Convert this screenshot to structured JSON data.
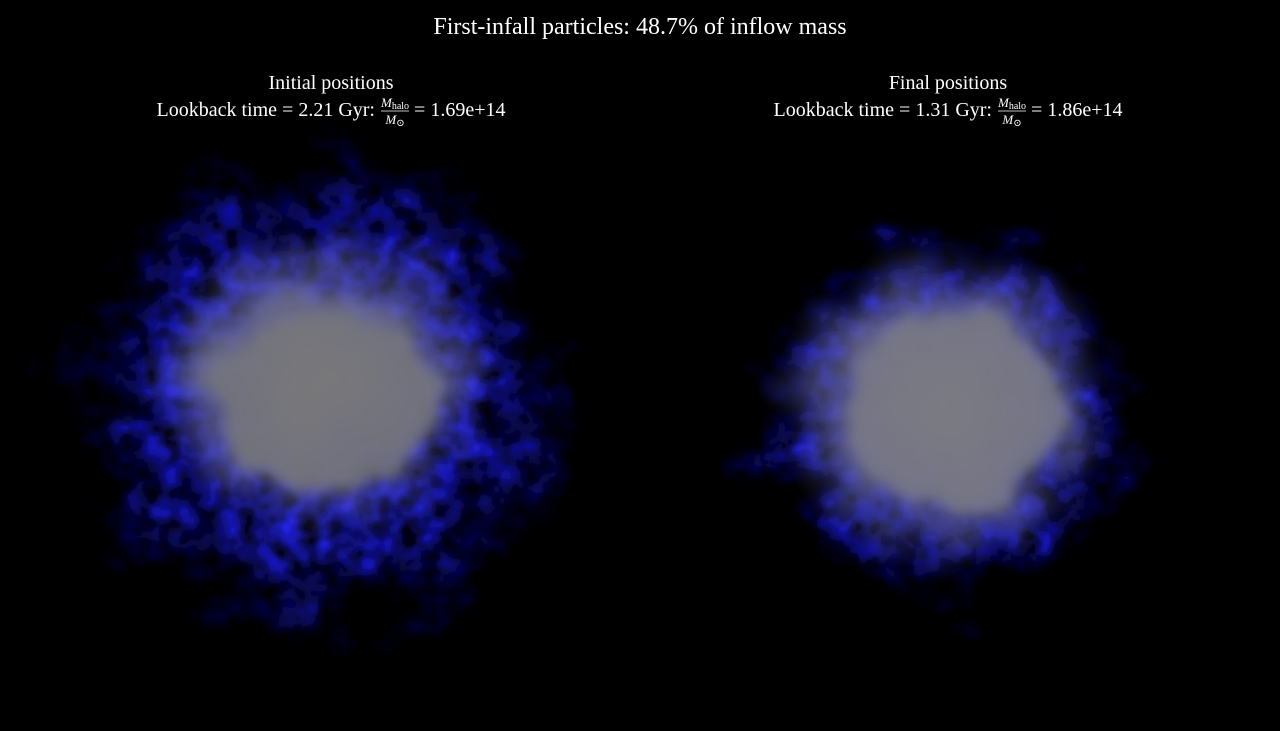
{
  "title": "First-infall particles: 48.7% of inflow mass",
  "panels": [
    {
      "heading": "Initial positions",
      "caption": "Lookback time = 2.21 Gyr:",
      "numerator": "M",
      "numerator_subscript": "halo",
      "denominator": "M",
      "denominator_subscript": "⊙",
      "value": "= 1.69e+14"
    },
    {
      "heading": "Final positions",
      "caption": "Lookback time = 1.31 Gyr:",
      "numerator": "M",
      "numerator_subscript": "halo",
      "denominator": "M",
      "denominator_subscript": "⊙",
      "value": "= 1.86e+14"
    }
  ]
}
